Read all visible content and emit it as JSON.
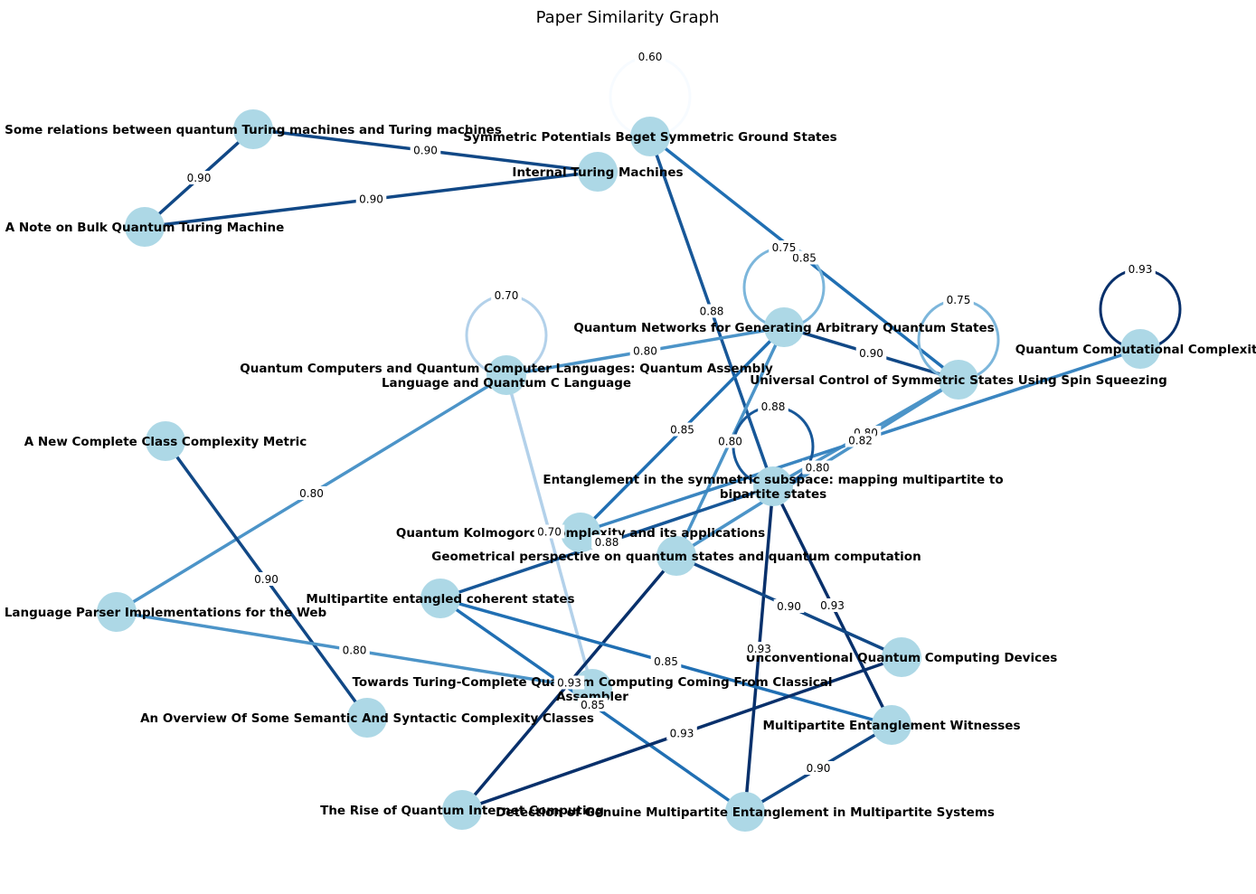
{
  "title": "Paper Similarity Graph",
  "colors": {
    "node_fill": "#add8e6",
    "edge_scale": "Blues",
    "background": "#ffffff"
  },
  "nodes": [
    {
      "id": "qtm_tm",
      "label": "Some relations between quantum Turing machines and Turing machines"
    },
    {
      "id": "bulk_qtm",
      "label": "A Note on Bulk Quantum Turing Machine"
    },
    {
      "id": "internal_tm",
      "label": "Internal Turing Machines"
    },
    {
      "id": "sym_pot",
      "label": "Symmetric Potentials Beget Symmetric Ground States"
    },
    {
      "id": "qnet",
      "label": "Quantum Networks for Generating Arbitrary Quantum States"
    },
    {
      "id": "qc_lang",
      "label": "Quantum Computers and Quantum Computer Languages: Quantum Assembly Language and Quantum C Language"
    },
    {
      "id": "univ_ctrl",
      "label": "Universal Control of Symmetric States Using Spin Squeezing"
    },
    {
      "id": "qcc",
      "label": "Quantum Computational Complexity"
    },
    {
      "id": "new_class",
      "label": "A New Complete Class Complexity Metric"
    },
    {
      "id": "ent_sym",
      "label": "Entanglement in the symmetric subspace: mapping multipartite to bipartite states"
    },
    {
      "id": "qkc",
      "label": "Quantum Kolmogorov complexity and its applications"
    },
    {
      "id": "geom",
      "label": "Geometrical perspective on quantum states and quantum computation"
    },
    {
      "id": "mp_coh",
      "label": "Multipartite entangled coherent states"
    },
    {
      "id": "parser",
      "label": "Programming Language Parser Implementations for the Web"
    },
    {
      "id": "unconv",
      "label": "Unconventional Quantum Computing Devices"
    },
    {
      "id": "towards",
      "label": "Towards Turing-Complete Quantum Computing Coming From Classical Assembler"
    },
    {
      "id": "overview",
      "label": "An Overview Of Some Semantic And Syntactic Complexity Classes"
    },
    {
      "id": "mp_wit",
      "label": "Multipartite Entanglement Witnesses"
    },
    {
      "id": "rise",
      "label": "The Rise of Quantum Internet Computing"
    },
    {
      "id": "detect",
      "label": "Detection of Genuine Multipartite Entanglement in Multipartite Systems"
    }
  ],
  "edges": [
    {
      "source": "qtm_tm",
      "target": "bulk_qtm",
      "weight": 0.9,
      "label": "0.90"
    },
    {
      "source": "qtm_tm",
      "target": "internal_tm",
      "weight": 0.9,
      "label": "0.90"
    },
    {
      "source": "bulk_qtm",
      "target": "internal_tm",
      "weight": 0.9,
      "label": "0.90"
    },
    {
      "source": "sym_pot",
      "target": "sym_pot",
      "weight": 0.6,
      "label": "0.60"
    },
    {
      "source": "sym_pot",
      "target": "ent_sym",
      "weight": 0.88,
      "label": "0.88"
    },
    {
      "source": "sym_pot",
      "target": "univ_ctrl",
      "weight": 0.85,
      "label": "0.85"
    },
    {
      "source": "qnet",
      "target": "qnet",
      "weight": 0.75,
      "label": "0.75"
    },
    {
      "source": "qnet",
      "target": "qc_lang",
      "weight": 0.8,
      "label": "0.80"
    },
    {
      "source": "qnet",
      "target": "univ_ctrl",
      "weight": 0.9,
      "label": "0.90"
    },
    {
      "source": "qnet",
      "target": "qkc",
      "weight": 0.85,
      "label": "0.85"
    },
    {
      "source": "qnet",
      "target": "geom",
      "weight": 0.8,
      "label": "0.80"
    },
    {
      "source": "qc_lang",
      "target": "qc_lang",
      "weight": 0.7,
      "label": "0.70"
    },
    {
      "source": "qc_lang",
      "target": "parser",
      "weight": 0.8,
      "label": "0.80"
    },
    {
      "source": "qc_lang",
      "target": "towards",
      "weight": 0.7,
      "label": "0.70"
    },
    {
      "source": "univ_ctrl",
      "target": "univ_ctrl",
      "weight": 0.75,
      "label": "0.75"
    },
    {
      "source": "univ_ctrl",
      "target": "ent_sym",
      "weight": 0.8,
      "label": "0.80"
    },
    {
      "source": "univ_ctrl",
      "target": "geom",
      "weight": 0.8,
      "label": "0.80"
    },
    {
      "source": "qcc",
      "target": "qcc",
      "weight": 0.93,
      "label": "0.93"
    },
    {
      "source": "qcc",
      "target": "qkc",
      "weight": 0.82,
      "label": "0.82"
    },
    {
      "source": "new_class",
      "target": "overview",
      "weight": 0.9,
      "label": "0.90"
    },
    {
      "source": "ent_sym",
      "target": "ent_sym",
      "weight": 0.88,
      "label": "0.88"
    },
    {
      "source": "ent_sym",
      "target": "mp_coh",
      "weight": 0.88,
      "label": "0.88"
    },
    {
      "source": "ent_sym",
      "target": "mp_wit",
      "weight": 0.93,
      "label": "0.93"
    },
    {
      "source": "ent_sym",
      "target": "detect",
      "weight": 0.93,
      "label": "0.93"
    },
    {
      "source": "geom",
      "target": "unconv",
      "weight": 0.9,
      "label": "0.90"
    },
    {
      "source": "geom",
      "target": "rise",
      "weight": 0.93,
      "label": "0.93"
    },
    {
      "source": "mp_coh",
      "target": "mp_wit",
      "weight": 0.85,
      "label": "0.85"
    },
    {
      "source": "mp_coh",
      "target": "detect",
      "weight": 0.85,
      "label": "0.85"
    },
    {
      "source": "parser",
      "target": "towards",
      "weight": 0.8,
      "label": "0.80"
    },
    {
      "source": "unconv",
      "target": "rise",
      "weight": 0.93,
      "label": "0.93"
    },
    {
      "source": "mp_wit",
      "target": "detect",
      "weight": 0.9,
      "label": "0.90"
    }
  ]
}
